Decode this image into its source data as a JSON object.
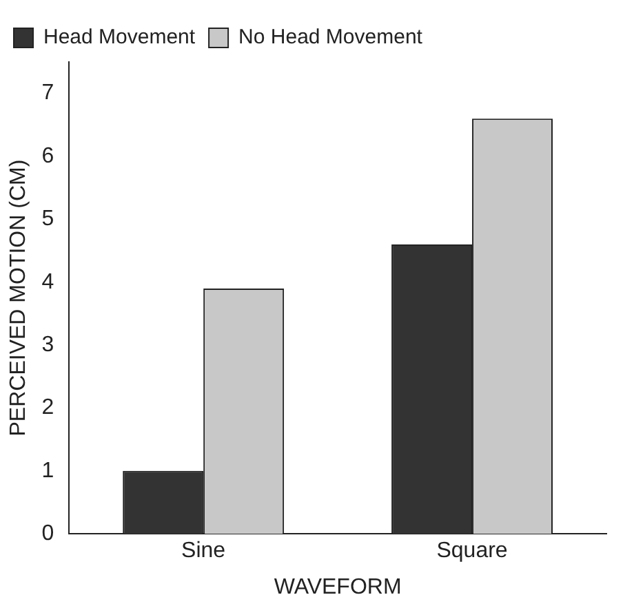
{
  "chart_data": {
    "type": "bar",
    "xlabel": "WAVEFORM",
    "ylabel": "PERCEIVED MOTION (CM)",
    "categories": [
      "Sine",
      "Square"
    ],
    "series": [
      {
        "name": "Head Movement",
        "color": "#333333",
        "values": [
          1.0,
          4.6
        ]
      },
      {
        "name": "No Head Movement",
        "color": "#c8c8c8",
        "values": [
          3.9,
          6.6
        ]
      }
    ],
    "ylim": [
      0,
      7.5
    ],
    "yticks": [
      0,
      1,
      2,
      3,
      4,
      5,
      6,
      7
    ],
    "grid": false,
    "legend": "top left"
  }
}
